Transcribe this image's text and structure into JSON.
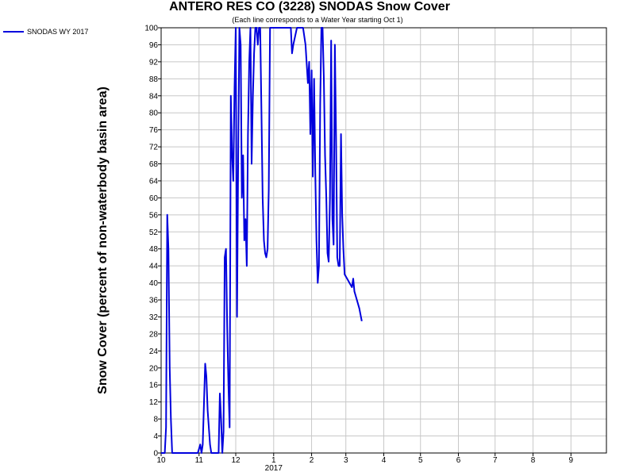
{
  "chart_data": {
    "type": "line",
    "title": "ANTERO RES CO (3228) SNODAS Snow Cover",
    "subtitle": "(Each line corresponds to a Water Year starting Oct 1)",
    "ylabel": "Snow Cover (percent of non-waterbody basin area)",
    "xlabel": "",
    "year_label": "2017",
    "ylim": [
      0,
      100
    ],
    "y_ticks": [
      0,
      4,
      8,
      12,
      16,
      20,
      24,
      28,
      32,
      36,
      40,
      44,
      48,
      52,
      56,
      60,
      64,
      68,
      72,
      76,
      80,
      84,
      88,
      92,
      96,
      100
    ],
    "x_axis": {
      "start": "2016-10-01",
      "end": "2017-09-30",
      "ticks": [
        {
          "label": "10",
          "date": "2016-10-01"
        },
        {
          "label": "11",
          "date": "2016-11-01"
        },
        {
          "label": "12",
          "date": "2016-12-01"
        },
        {
          "label": "1",
          "date": "2017-01-01"
        },
        {
          "label": "2",
          "date": "2017-02-01"
        },
        {
          "label": "3",
          "date": "2017-03-01"
        },
        {
          "label": "4",
          "date": "2017-04-01"
        },
        {
          "label": "5",
          "date": "2017-05-01"
        },
        {
          "label": "6",
          "date": "2017-06-01"
        },
        {
          "label": "7",
          "date": "2017-07-01"
        },
        {
          "label": "8",
          "date": "2017-08-01"
        },
        {
          "label": "9",
          "date": "2017-09-01"
        }
      ]
    },
    "grid": true,
    "legend_position": "top-left",
    "series": [
      {
        "name": "SNODAS WY 2017",
        "color": "#0000dd",
        "points": [
          [
            "2016-10-01",
            0
          ],
          [
            "2016-10-04",
            0
          ],
          [
            "2016-10-05",
            6
          ],
          [
            "2016-10-06",
            56
          ],
          [
            "2016-10-07",
            48
          ],
          [
            "2016-10-08",
            20
          ],
          [
            "2016-10-09",
            8
          ],
          [
            "2016-10-10",
            0
          ],
          [
            "2016-10-20",
            0
          ],
          [
            "2016-10-31",
            0
          ],
          [
            "2016-11-02",
            2
          ],
          [
            "2016-11-03",
            0
          ],
          [
            "2016-11-04",
            2
          ],
          [
            "2016-11-06",
            21
          ],
          [
            "2016-11-07",
            18
          ],
          [
            "2016-11-08",
            10
          ],
          [
            "2016-11-09",
            6
          ],
          [
            "2016-11-10",
            2
          ],
          [
            "2016-11-11",
            0
          ],
          [
            "2016-11-15",
            0
          ],
          [
            "2016-11-17",
            0
          ],
          [
            "2016-11-18",
            14
          ],
          [
            "2016-11-19",
            8
          ],
          [
            "2016-11-20",
            0
          ],
          [
            "2016-11-21",
            5
          ],
          [
            "2016-11-22",
            46
          ],
          [
            "2016-11-23",
            48
          ],
          [
            "2016-11-24",
            30
          ],
          [
            "2016-11-25",
            16
          ],
          [
            "2016-11-26",
            6
          ],
          [
            "2016-11-27",
            84
          ],
          [
            "2016-11-28",
            70
          ],
          [
            "2016-11-29",
            64
          ],
          [
            "2016-11-30",
            86
          ],
          [
            "2016-12-01",
            100
          ],
          [
            "2016-12-02",
            32
          ],
          [
            "2016-12-03",
            70
          ],
          [
            "2016-12-04",
            100
          ],
          [
            "2016-12-05",
            96
          ],
          [
            "2016-12-06",
            60
          ],
          [
            "2016-12-07",
            70
          ],
          [
            "2016-12-08",
            50
          ],
          [
            "2016-12-09",
            55
          ],
          [
            "2016-12-10",
            44
          ],
          [
            "2016-12-11",
            75
          ],
          [
            "2016-12-12",
            92
          ],
          [
            "2016-12-13",
            100
          ],
          [
            "2016-12-14",
            68
          ],
          [
            "2016-12-15",
            84
          ],
          [
            "2016-12-16",
            94
          ],
          [
            "2016-12-17",
            100
          ],
          [
            "2016-12-18",
            100
          ],
          [
            "2016-12-19",
            96
          ],
          [
            "2016-12-20",
            100
          ],
          [
            "2016-12-21",
            100
          ],
          [
            "2016-12-22",
            80
          ],
          [
            "2016-12-23",
            60
          ],
          [
            "2016-12-24",
            50
          ],
          [
            "2016-12-25",
            47
          ],
          [
            "2016-12-26",
            46
          ],
          [
            "2016-12-27",
            48
          ],
          [
            "2016-12-28",
            62
          ],
          [
            "2016-12-29",
            100
          ],
          [
            "2016-12-30",
            100
          ],
          [
            "2016-12-31",
            100
          ],
          [
            "2017-01-05",
            100
          ],
          [
            "2017-01-10",
            100
          ],
          [
            "2017-01-15",
            100
          ],
          [
            "2017-01-16",
            94
          ],
          [
            "2017-01-17",
            96
          ],
          [
            "2017-01-20",
            100
          ],
          [
            "2017-01-25",
            100
          ],
          [
            "2017-01-27",
            96
          ],
          [
            "2017-01-29",
            87
          ],
          [
            "2017-01-30",
            92
          ],
          [
            "2017-01-31",
            75
          ],
          [
            "2017-02-01",
            90
          ],
          [
            "2017-02-02",
            65
          ],
          [
            "2017-02-03",
            88
          ],
          [
            "2017-02-04",
            66
          ],
          [
            "2017-02-05",
            50
          ],
          [
            "2017-02-06",
            40
          ],
          [
            "2017-02-07",
            44
          ],
          [
            "2017-02-08",
            82
          ],
          [
            "2017-02-09",
            100
          ],
          [
            "2017-02-10",
            100
          ],
          [
            "2017-02-11",
            88
          ],
          [
            "2017-02-12",
            70
          ],
          [
            "2017-02-13",
            60
          ],
          [
            "2017-02-14",
            47
          ],
          [
            "2017-02-15",
            45
          ],
          [
            "2017-02-16",
            60
          ],
          [
            "2017-02-17",
            97
          ],
          [
            "2017-02-18",
            55
          ],
          [
            "2017-02-19",
            49
          ],
          [
            "2017-02-20",
            96
          ],
          [
            "2017-02-21",
            74
          ],
          [
            "2017-02-22",
            46
          ],
          [
            "2017-02-23",
            44
          ],
          [
            "2017-02-24",
            44
          ],
          [
            "2017-02-25",
            75
          ],
          [
            "2017-02-26",
            56
          ],
          [
            "2017-02-27",
            48
          ],
          [
            "2017-02-28",
            42
          ],
          [
            "2017-03-02",
            41
          ],
          [
            "2017-03-04",
            40
          ],
          [
            "2017-03-06",
            39
          ],
          [
            "2017-03-07",
            41
          ],
          [
            "2017-03-08",
            38
          ],
          [
            "2017-03-10",
            36
          ],
          [
            "2017-03-12",
            34
          ],
          [
            "2017-03-14",
            31
          ]
        ]
      }
    ]
  }
}
